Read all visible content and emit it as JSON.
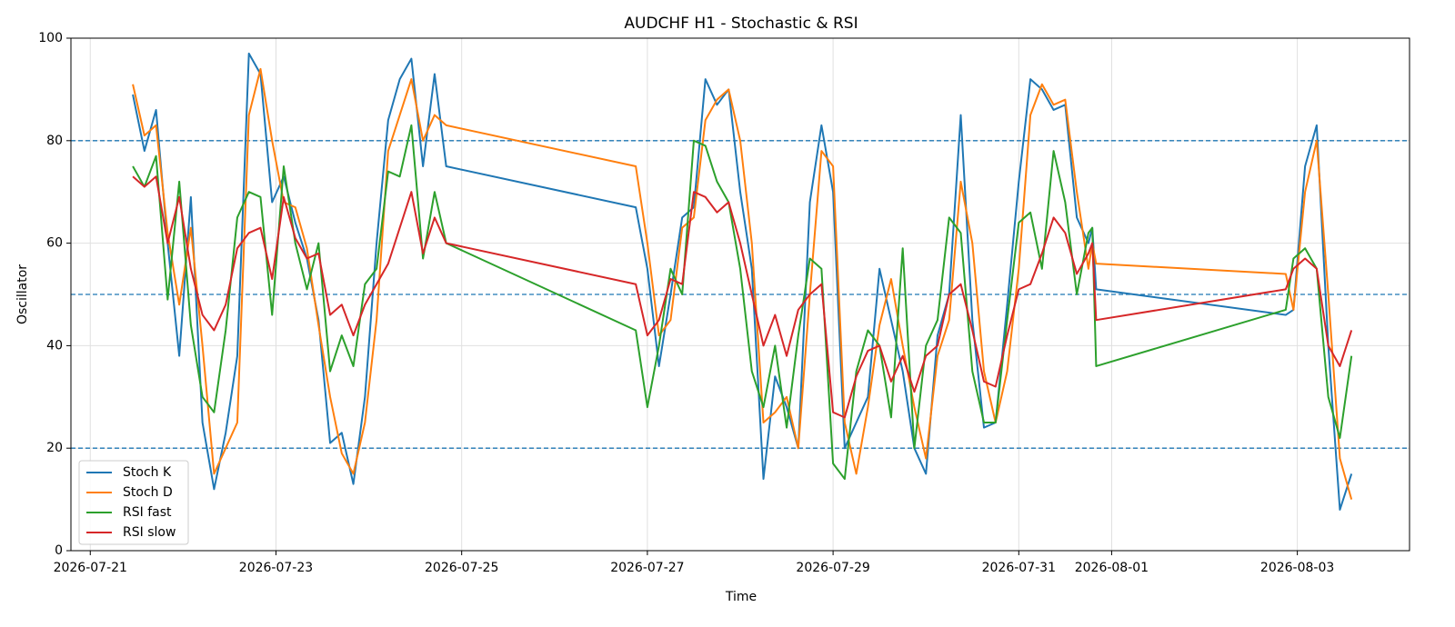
{
  "chart_data": {
    "type": "line",
    "title": "AUDCHF H1 - Stochastic & RSI",
    "x_label": "Time",
    "y_label": "Oscillator",
    "x": [
      "2026-07-21T11:00",
      "2026-07-21T14:00",
      "2026-07-21T17:00",
      "2026-07-21T20:00",
      "2026-07-21T23:00",
      "2026-07-22T02:00",
      "2026-07-22T05:00",
      "2026-07-22T08:00",
      "2026-07-22T11:00",
      "2026-07-22T14:00",
      "2026-07-22T17:00",
      "2026-07-22T20:00",
      "2026-07-22T23:00",
      "2026-07-23T02:00",
      "2026-07-23T05:00",
      "2026-07-23T08:00",
      "2026-07-23T11:00",
      "2026-07-23T14:00",
      "2026-07-23T17:00",
      "2026-07-23T20:00",
      "2026-07-23T23:00",
      "2026-07-24T02:00",
      "2026-07-24T05:00",
      "2026-07-24T08:00",
      "2026-07-24T11:00",
      "2026-07-24T14:00",
      "2026-07-24T17:00",
      "2026-07-24T20:00",
      "2026-07-26T21:00",
      "2026-07-27T00:00",
      "2026-07-27T03:00",
      "2026-07-27T06:00",
      "2026-07-27T09:00",
      "2026-07-27T12:00",
      "2026-07-27T15:00",
      "2026-07-27T18:00",
      "2026-07-27T21:00",
      "2026-07-28T00:00",
      "2026-07-28T03:00",
      "2026-07-28T06:00",
      "2026-07-28T09:00",
      "2026-07-28T12:00",
      "2026-07-28T15:00",
      "2026-07-28T18:00",
      "2026-07-28T21:00",
      "2026-07-29T00:00",
      "2026-07-29T03:00",
      "2026-07-29T06:00",
      "2026-07-29T09:00",
      "2026-07-29T12:00",
      "2026-07-29T15:00",
      "2026-07-29T18:00",
      "2026-07-29T21:00",
      "2026-07-30T00:00",
      "2026-07-30T03:00",
      "2026-07-30T06:00",
      "2026-07-30T09:00",
      "2026-07-30T12:00",
      "2026-07-30T15:00",
      "2026-07-30T18:00",
      "2026-07-30T21:00",
      "2026-07-31T00:00",
      "2026-07-31T03:00",
      "2026-07-31T06:00",
      "2026-07-31T09:00",
      "2026-07-31T12:00",
      "2026-07-31T15:00",
      "2026-07-31T18:00",
      "2026-07-31T19:00",
      "2026-07-31T20:00",
      "2026-08-02T21:00",
      "2026-08-02T23:00",
      "2026-08-03T02:00",
      "2026-08-03T05:00",
      "2026-08-03T08:00",
      "2026-08-03T11:00",
      "2026-08-03T14:00"
    ],
    "series": [
      {
        "name": "Stoch K",
        "color": "#1f77b4",
        "values": [
          89,
          78,
          86,
          60,
          38,
          69,
          25,
          12,
          23,
          38,
          97,
          93,
          68,
          73,
          64,
          57,
          45,
          21,
          23,
          13,
          30,
          60,
          84,
          92,
          96,
          75,
          93,
          75,
          67,
          55,
          36,
          50,
          65,
          67,
          92,
          87,
          90,
          70,
          55,
          14,
          34,
          28,
          20,
          68,
          83,
          70,
          20,
          25,
          30,
          55,
          45,
          35,
          20,
          15,
          42,
          50,
          85,
          45,
          24,
          25,
          48,
          72,
          92,
          90,
          86,
          87,
          65,
          60,
          63,
          51,
          46,
          47,
          75,
          83,
          40,
          8,
          15
        ]
      },
      {
        "name": "Stoch D",
        "color": "#ff7f0e",
        "values": [
          91,
          81,
          83,
          62,
          48,
          63,
          40,
          15,
          20,
          25,
          85,
          94,
          80,
          68,
          67,
          59,
          44,
          30,
          19,
          15,
          25,
          45,
          78,
          85,
          92,
          80,
          85,
          83,
          75,
          60,
          42,
          45,
          63,
          65,
          84,
          88,
          90,
          80,
          60,
          25,
          27,
          30,
          20,
          50,
          78,
          75,
          25,
          15,
          28,
          44,
          53,
          40,
          28,
          18,
          38,
          45,
          72,
          60,
          35,
          25,
          35,
          55,
          85,
          91,
          87,
          88,
          70,
          55,
          60,
          56,
          54,
          47,
          70,
          80,
          50,
          18,
          10
        ]
      },
      {
        "name": "RSI fast",
        "color": "#2ca02c",
        "values": [
          75,
          71,
          77,
          49,
          72,
          44,
          30,
          27,
          43,
          65,
          70,
          69,
          46,
          75,
          60,
          51,
          60,
          35,
          42,
          36,
          52,
          55,
          74,
          73,
          83,
          57,
          70,
          60,
          43,
          28,
          40,
          55,
          50,
          80,
          79,
          72,
          68,
          55,
          35,
          28,
          40,
          24,
          42,
          57,
          55,
          17,
          14,
          35,
          43,
          40,
          26,
          59,
          20,
          40,
          45,
          65,
          62,
          35,
          25,
          25,
          45,
          64,
          66,
          55,
          78,
          68,
          50,
          62,
          63,
          36,
          47,
          57,
          59,
          55,
          30,
          22,
          38
        ]
      },
      {
        "name": "RSI slow",
        "color": "#d62728",
        "values": [
          73,
          71,
          73,
          60,
          69,
          55,
          46,
          43,
          48,
          59,
          62,
          63,
          53,
          69,
          61,
          57,
          58,
          46,
          48,
          42,
          48,
          52,
          56,
          63,
          70,
          58,
          65,
          60,
          52,
          42,
          45,
          53,
          52,
          70,
          69,
          66,
          68,
          60,
          50,
          40,
          46,
          38,
          47,
          50,
          52,
          27,
          26,
          34,
          39,
          40,
          33,
          38,
          31,
          38,
          40,
          50,
          52,
          43,
          33,
          32,
          42,
          51,
          52,
          58,
          65,
          62,
          54,
          58,
          60,
          45,
          51,
          55,
          57,
          55,
          40,
          36,
          43
        ]
      }
    ],
    "xlim": [
      "2026-07-20T19:00",
      "2026-08-04T05:00"
    ],
    "xticks": [
      "2026-07-21",
      "2026-07-23",
      "2026-07-25",
      "2026-07-27",
      "2026-07-29",
      "2026-07-31",
      "2026-08-01",
      "2026-08-03"
    ],
    "ylim": [
      0,
      100
    ],
    "yticks": [
      0,
      20,
      40,
      60,
      80,
      100
    ],
    "levels": [
      80,
      50,
      20
    ],
    "level_color": "#1f77b4",
    "grid": true,
    "legend": "lower left"
  }
}
